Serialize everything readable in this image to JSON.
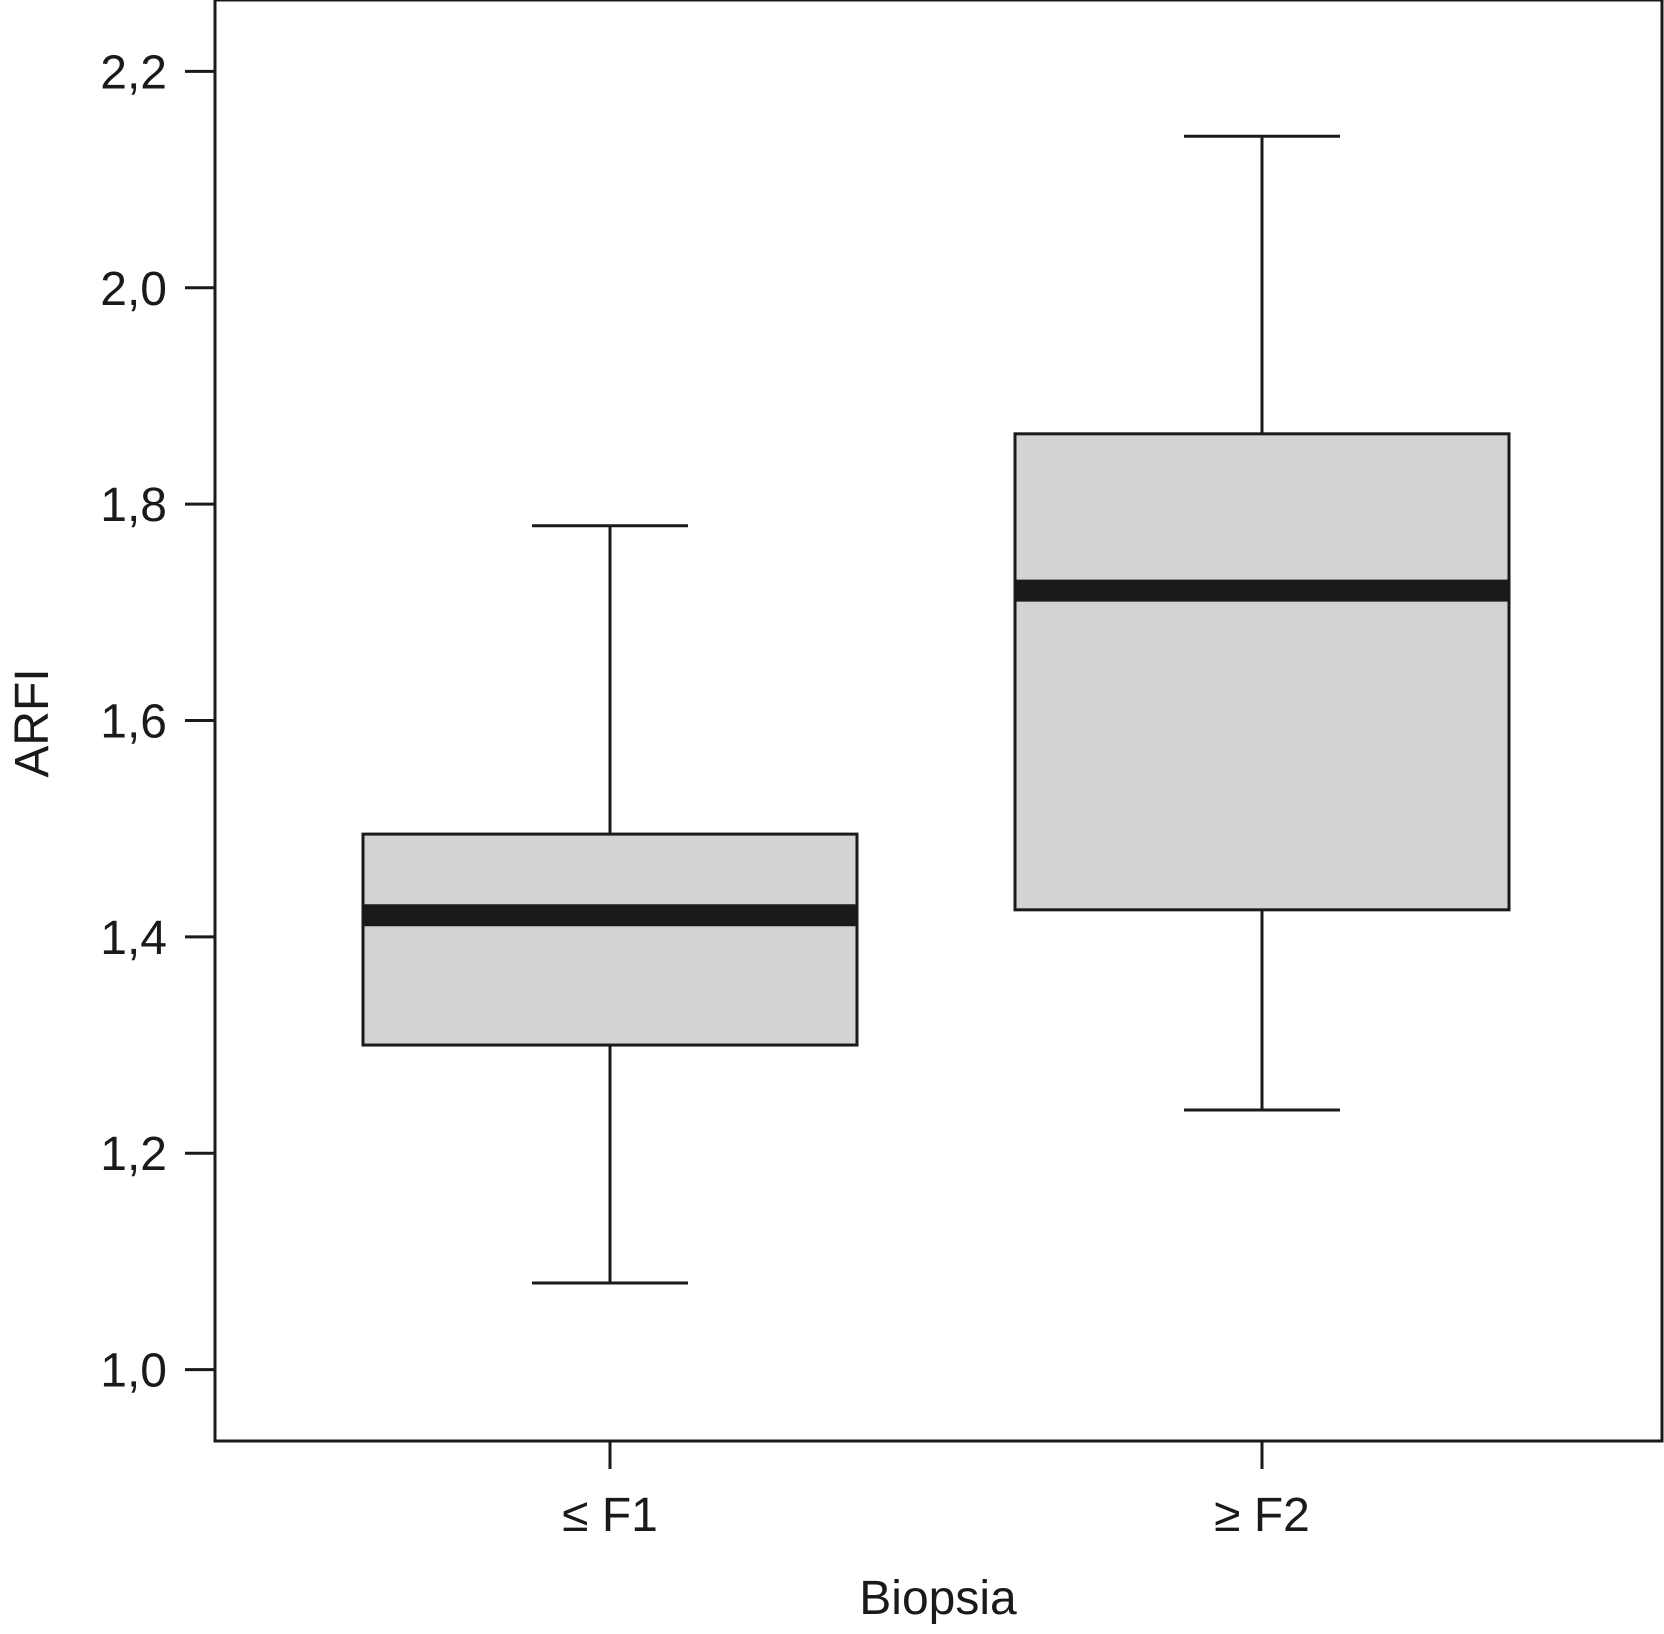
{
  "chart_data": {
    "type": "box",
    "xlabel": "Biopsia",
    "ylabel": "ARFI",
    "ylim": [
      0.934,
      2.266
    ],
    "yticks": [
      {
        "value": 1.0,
        "label": "1,0"
      },
      {
        "value": 1.2,
        "label": "1,2"
      },
      {
        "value": 1.4,
        "label": "1,4"
      },
      {
        "value": 1.6,
        "label": "1,6"
      },
      {
        "value": 1.8,
        "label": "1,8"
      },
      {
        "value": 2.0,
        "label": "2,0"
      },
      {
        "value": 2.2,
        "label": "2,2"
      }
    ],
    "categories": [
      "≤ F1",
      "≥ F2"
    ],
    "boxes": [
      {
        "category": "≤ F1",
        "min": 1.08,
        "q1": 1.3,
        "median": 1.42,
        "q3": 1.495,
        "max": 1.78
      },
      {
        "category": "≥ F2",
        "min": 1.24,
        "q1": 1.425,
        "median": 1.72,
        "q3": 1.865,
        "max": 2.14
      }
    ],
    "grid": false,
    "colors": {
      "box_fill": "#d1d3d4",
      "stroke": "#1a1a1a",
      "median": "#1a1a1a"
    }
  }
}
